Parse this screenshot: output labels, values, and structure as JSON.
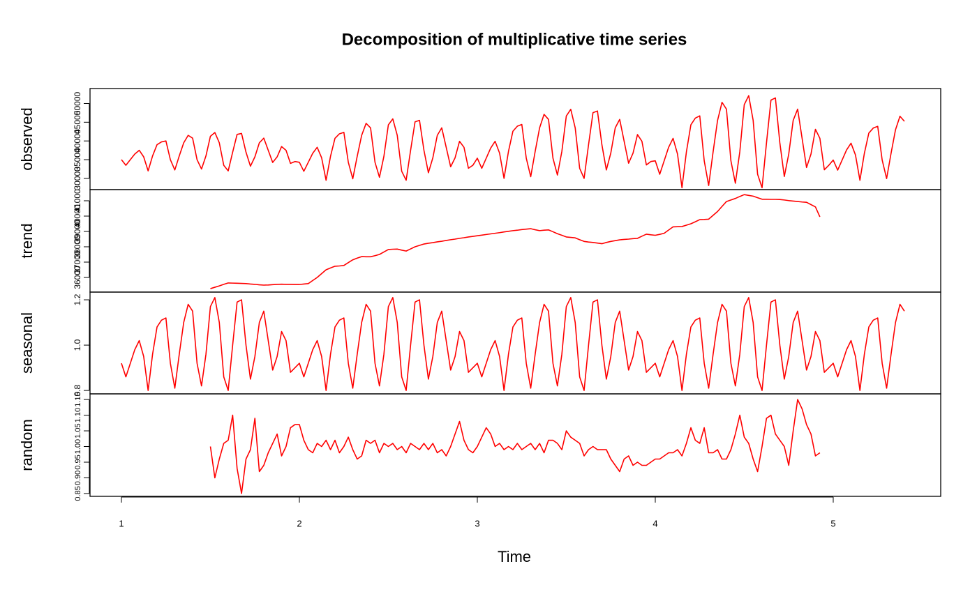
{
  "chart_data": {
    "type": "line",
    "title": "Decomposition of multiplicative time series",
    "xlabel": "Time",
    "color": "#ff0000",
    "xlim": [
      0.8235,
      5.604
    ],
    "xticks": [
      1,
      2,
      3,
      4,
      5
    ],
    "x": [
      1,
      1.025,
      1.05,
      1.075,
      1.1,
      1.125,
      1.15,
      1.175,
      1.2,
      1.225,
      1.25,
      1.275,
      1.3,
      1.325,
      1.35,
      1.375,
      1.4,
      1.425,
      1.45,
      1.475,
      1.5,
      1.525,
      1.55,
      1.575,
      1.6,
      1.625,
      1.65,
      1.675,
      1.7,
      1.725,
      1.75,
      1.775,
      1.8,
      1.825,
      1.85,
      1.875,
      1.9,
      1.925,
      1.95,
      1.975,
      2,
      2.025,
      2.05,
      2.075,
      2.1,
      2.125,
      2.15,
      2.175,
      2.2,
      2.225,
      2.25,
      2.275,
      2.3,
      2.325,
      2.35,
      2.375,
      2.4,
      2.425,
      2.45,
      2.475,
      2.5,
      2.525,
      2.55,
      2.575,
      2.6,
      2.625,
      2.65,
      2.675,
      2.7,
      2.725,
      2.75,
      2.775,
      2.8,
      2.825,
      2.85,
      2.875,
      2.9,
      2.925,
      2.95,
      2.975,
      3,
      3.025,
      3.05,
      3.075,
      3.1,
      3.125,
      3.15,
      3.175,
      3.2,
      3.225,
      3.25,
      3.275,
      3.3,
      3.325,
      3.35,
      3.375,
      3.4,
      3.425,
      3.45,
      3.475,
      3.5,
      3.525,
      3.55,
      3.575,
      3.6,
      3.625,
      3.65,
      3.675,
      3.7,
      3.725,
      3.75,
      3.775,
      3.8,
      3.825,
      3.85,
      3.875,
      3.9,
      3.925,
      3.95,
      3.975,
      4,
      4.025,
      4.05,
      4.075,
      4.1,
      4.125,
      4.15,
      4.175,
      4.2,
      4.225,
      4.25,
      4.275,
      4.3,
      4.325,
      4.35,
      4.375,
      4.4,
      4.425,
      4.45,
      4.475,
      4.5,
      4.525,
      4.55,
      4.575,
      4.6,
      4.625,
      4.65,
      4.675,
      4.7,
      4.725,
      4.75,
      4.775,
      4.8,
      4.825,
      4.85,
      4.875,
      4.9,
      4.925,
      4.95,
      4.975,
      5,
      5.025,
      5.05,
      5.075,
      5.1,
      5.125,
      5.15,
      5.175,
      5.2,
      5.225,
      5.25,
      5.275,
      5.3,
      5.325,
      5.35,
      5.375,
      5.4
    ],
    "panels": [
      {
        "ylabel": "observed",
        "ylim": [
          27000,
          54000
        ],
        "yticks": [
          30000,
          35000,
          40000,
          45000,
          50000
        ],
        "values": [
          35000,
          33500,
          35000,
          36500,
          37500,
          35750,
          32000,
          36000,
          39000,
          39750,
          40000,
          35000,
          32250,
          36000,
          39500,
          41500,
          40750,
          35000,
          32500,
          36000,
          41250,
          42250,
          39500,
          33500,
          32000,
          37000,
          41750,
          42000,
          37000,
          33250,
          35750,
          39500,
          40750,
          37500,
          34250,
          35750,
          38500,
          37500,
          34000,
          34500,
          34300,
          31900,
          34300,
          36700,
          38300,
          35500,
          29500,
          35900,
          40700,
          41900,
          42300,
          34300,
          29900,
          35900,
          41500,
          44700,
          43500,
          34300,
          30300,
          35900,
          44300,
          45900,
          41500,
          31900,
          29500,
          37500,
          45100,
          45500,
          37500,
          31500,
          35500,
          41500,
          43500,
          38300,
          33100,
          35500,
          39900,
          38300,
          32700,
          33500,
          35400,
          32700,
          35400,
          38100,
          39900,
          36750,
          30000,
          37200,
          42600,
          43950,
          44400,
          35400,
          30450,
          37200,
          43500,
          47100,
          45750,
          35400,
          30900,
          37200,
          46650,
          48450,
          43500,
          32700,
          30000,
          39000,
          47550,
          48000,
          39000,
          32250,
          36750,
          43500,
          45750,
          39900,
          34050,
          36750,
          41700,
          39900,
          33600,
          34500,
          34700,
          31100,
          34700,
          38300,
          40700,
          36500,
          27500,
          37100,
          44300,
          46100,
          46700,
          34700,
          28100,
          37100,
          45500,
          50300,
          48500,
          34700,
          28700,
          37100,
          49700,
          52100,
          45500,
          31100,
          27500,
          39500,
          50900,
          51500,
          39500,
          30500,
          36500,
          45500,
          48500,
          40700,
          32900,
          36500,
          43100,
          40700,
          32300,
          33500,
          34900,
          32200,
          34900,
          37600,
          39400,
          36250,
          29500,
          36700,
          42100,
          43450,
          43900,
          34900,
          29950,
          36700,
          43000,
          46600,
          45250
        ]
      },
      {
        "ylabel": "trend",
        "ylim": [
          35045,
          41727
        ],
        "yticks": [
          36000,
          37000,
          38000,
          39000,
          40000,
          41000
        ],
        "values": [
          null,
          null,
          null,
          null,
          null,
          null,
          null,
          null,
          null,
          null,
          null,
          null,
          null,
          null,
          null,
          null,
          null,
          null,
          null,
          null,
          35270,
          35360,
          35450,
          35550,
          35640,
          35630,
          35620,
          35610,
          35600,
          35570,
          35550,
          35520,
          35500,
          35510,
          35530,
          35550,
          35560,
          35550,
          35550,
          35540,
          35540,
          35570,
          35600,
          35800,
          36000,
          36250,
          36500,
          36620,
          36730,
          36750,
          36780,
          36970,
          37150,
          37260,
          37360,
          37350,
          37350,
          37420,
          37500,
          37660,
          37820,
          37840,
          37850,
          37780,
          37720,
          37860,
          38000,
          38090,
          38180,
          38230,
          38270,
          38320,
          38360,
          38410,
          38460,
          38500,
          38550,
          38590,
          38640,
          38680,
          38720,
          38760,
          38800,
          38840,
          38880,
          38920,
          38970,
          39010,
          39050,
          39080,
          39120,
          39150,
          39180,
          39110,
          39050,
          39080,
          39100,
          38980,
          38850,
          38750,
          38640,
          38610,
          38580,
          38460,
          38350,
          38310,
          38280,
          38240,
          38200,
          38280,
          38350,
          38400,
          38450,
          38480,
          38500,
          38530,
          38550,
          38690,
          38820,
          38780,
          38750,
          38810,
          38880,
          39090,
          39300,
          39310,
          39320,
          39410,
          39500,
          39630,
          39770,
          39780,
          39800,
          40050,
          40300,
          40630,
          40950,
          41050,
          41150,
          41280,
          41400,
          41350,
          41300,
          41200,
          41100,
          41100,
          41090,
          41090,
          41080,
          41050,
          41010,
          40980,
          40950,
          40920,
          40900,
          40750,
          40600,
          39950,
          null,
          null,
          null,
          null,
          null,
          null,
          null,
          null,
          null,
          null,
          null,
          null,
          null,
          null,
          null,
          null,
          null,
          null,
          null
        ]
      },
      {
        "ylabel": "seasonal",
        "ylim": [
          0.785,
          1.234
        ],
        "yticks": [
          0.8,
          {
            "value": 1,
            "label": "1.0"
          },
          1.2
        ],
        "values": [
          0.92,
          0.86,
          0.92,
          0.98,
          1.02,
          0.95,
          0.8,
          0.96,
          1.08,
          1.11,
          1.12,
          0.92,
          0.81,
          0.96,
          1.1,
          1.18,
          1.15,
          0.92,
          0.82,
          0.96,
          1.17,
          1.21,
          1.1,
          0.86,
          0.8,
          1,
          1.19,
          1.2,
          1,
          0.85,
          0.95,
          1.1,
          1.15,
          1.02,
          0.89,
          0.95,
          1.06,
          1.02,
          0.88,
          0.9,
          0.92,
          0.86,
          0.92,
          0.98,
          1.02,
          0.95,
          0.8,
          0.96,
          1.08,
          1.11,
          1.12,
          0.92,
          0.81,
          0.96,
          1.1,
          1.18,
          1.15,
          0.92,
          0.82,
          0.96,
          1.17,
          1.21,
          1.1,
          0.86,
          0.8,
          1,
          1.19,
          1.2,
          1,
          0.85,
          0.95,
          1.1,
          1.15,
          1.02,
          0.89,
          0.95,
          1.06,
          1.02,
          0.88,
          0.9,
          0.92,
          0.86,
          0.92,
          0.98,
          1.02,
          0.95,
          0.8,
          0.96,
          1.08,
          1.11,
          1.12,
          0.92,
          0.81,
          0.96,
          1.1,
          1.18,
          1.15,
          0.92,
          0.82,
          0.96,
          1.17,
          1.21,
          1.1,
          0.86,
          0.8,
          1,
          1.19,
          1.2,
          1,
          0.85,
          0.95,
          1.1,
          1.15,
          1.02,
          0.89,
          0.95,
          1.06,
          1.02,
          0.88,
          0.9,
          0.92,
          0.86,
          0.92,
          0.98,
          1.02,
          0.95,
          0.8,
          0.96,
          1.08,
          1.11,
          1.12,
          0.92,
          0.81,
          0.96,
          1.1,
          1.18,
          1.15,
          0.92,
          0.82,
          0.96,
          1.17,
          1.21,
          1.1,
          0.86,
          0.8,
          1,
          1.19,
          1.2,
          1,
          0.85,
          0.95,
          1.1,
          1.15,
          1.02,
          0.89,
          0.95,
          1.06,
          1.02,
          0.88,
          0.9,
          0.92,
          0.86,
          0.92,
          0.98,
          1.02,
          0.95,
          0.8,
          0.96,
          1.08,
          1.11,
          1.12,
          0.92,
          0.81,
          0.96,
          1.1,
          1.18,
          1.15
        ]
      },
      {
        "ylabel": "random",
        "ylim": [
          0.841,
          1.168
        ],
        "yticks": [
          0.85,
          {
            "value": 0.9,
            "label": "0.90"
          },
          0.95,
          {
            "value": 1,
            "label": "1.00"
          },
          1.05,
          {
            "value": 1.1,
            "label": "1.10"
          },
          1.15
        ],
        "values": [
          null,
          null,
          null,
          null,
          null,
          null,
          null,
          null,
          null,
          null,
          null,
          null,
          null,
          null,
          null,
          null,
          null,
          null,
          null,
          null,
          1,
          0.9,
          0.96,
          1.01,
          1.02,
          1.1,
          0.93,
          0.85,
          0.96,
          0.99,
          1.09,
          0.92,
          0.94,
          0.98,
          1.01,
          1.04,
          0.97,
          1,
          1.06,
          1.07,
          1.07,
          1.02,
          0.99,
          0.98,
          1.01,
          1,
          1.02,
          0.99,
          1.02,
          0.98,
          1,
          1.03,
          0.99,
          0.96,
          0.97,
          1.02,
          1.01,
          1.02,
          0.98,
          1.01,
          1,
          1.01,
          0.99,
          1,
          0.98,
          1.01,
          1,
          0.99,
          1.01,
          0.99,
          1.01,
          0.98,
          0.99,
          0.97,
          1,
          1.04,
          1.08,
          1.02,
          0.99,
          0.98,
          1,
          1.03,
          1.06,
          1.04,
          1,
          1.01,
          0.99,
          1,
          0.99,
          1.01,
          0.99,
          1,
          1.01,
          0.99,
          1.01,
          0.98,
          1.02,
          1.02,
          1.01,
          0.99,
          1.05,
          1.03,
          1.02,
          1.01,
          0.97,
          0.99,
          1,
          0.99,
          0.99,
          0.99,
          0.96,
          0.94,
          0.92,
          0.96,
          0.97,
          0.94,
          0.95,
          0.94,
          0.94,
          0.95,
          0.96,
          0.96,
          0.97,
          0.98,
          0.98,
          0.99,
          0.97,
          1.01,
          1.06,
          1.02,
          1.01,
          1.06,
          0.98,
          0.98,
          0.99,
          0.96,
          0.96,
          0.99,
          1.04,
          1.1,
          1.03,
          1.01,
          0.96,
          0.92,
          1,
          1.09,
          1.1,
          1.04,
          1.02,
          1,
          0.94,
          1.05,
          1.15,
          1.12,
          1.07,
          1.04,
          0.97,
          0.98,
          null,
          null,
          null,
          null,
          null,
          null,
          null,
          null,
          null,
          null,
          null,
          null,
          null,
          null,
          null,
          null,
          null,
          null,
          null
        ]
      }
    ]
  }
}
